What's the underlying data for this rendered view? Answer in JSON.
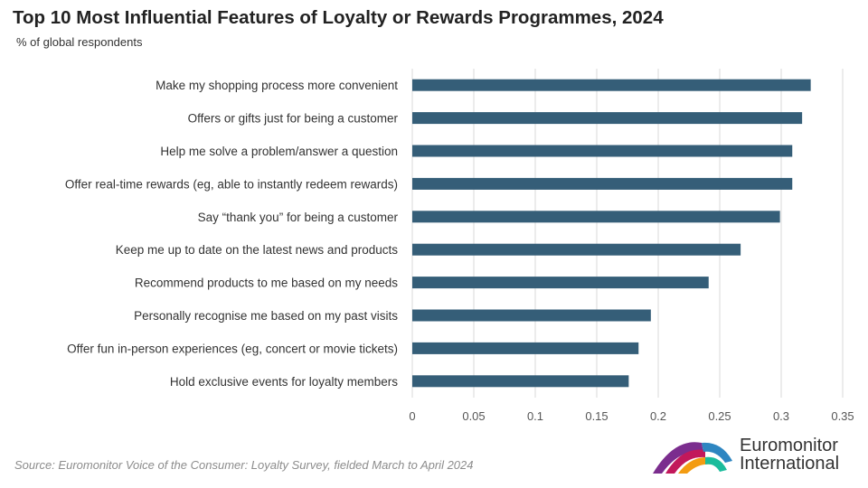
{
  "header": {
    "title": "Top 10 Most Influential Features of Loyalty or Rewards Programmes, 2024",
    "subtitle": "% of global respondents"
  },
  "footer": {
    "source": "Source: Euromonitor Voice of the Consumer: Loyalty Survey, fielded March to April 2024"
  },
  "logo": {
    "line1": "Euromonitor",
    "line2": "International",
    "colors": [
      "#7b2d8e",
      "#c2185b",
      "#f39c12",
      "#2e86c1",
      "#1abc9c"
    ]
  },
  "chart_data": {
    "type": "bar",
    "orientation": "horizontal",
    "title": "Top 10 Most Influential Features of Loyalty or Rewards Programmes, 2024",
    "subtitle": "% of global respondents",
    "categories": [
      "Make my shopping process more convenient",
      "Offers or gifts just for being a customer",
      "Help me solve a problem/answer a question",
      "Offer real-time rewards (eg, able to instantly redeem rewards)",
      "Say “thank you” for being a customer",
      "Keep me up to date on the latest news and products",
      "Recommend products to me based on my needs",
      "Personally recognise me based on my past visits",
      "Offer fun in-person experiences (eg, concert or movie tickets)",
      "Hold exclusive events for loyalty members"
    ],
    "values": [
      0.324,
      0.317,
      0.309,
      0.309,
      0.299,
      0.267,
      0.241,
      0.194,
      0.184,
      0.176
    ],
    "xlim": [
      0,
      0.35
    ],
    "xticks": [
      0,
      0.05,
      0.1,
      0.15,
      0.2,
      0.25,
      0.3,
      0.35
    ],
    "xtick_labels": [
      "0",
      "0.05",
      "0.1",
      "0.15",
      "0.2",
      "0.25",
      "0.3",
      "0.35"
    ],
    "bar_color": "#355e78",
    "grid": "vertical",
    "legend": "none"
  }
}
